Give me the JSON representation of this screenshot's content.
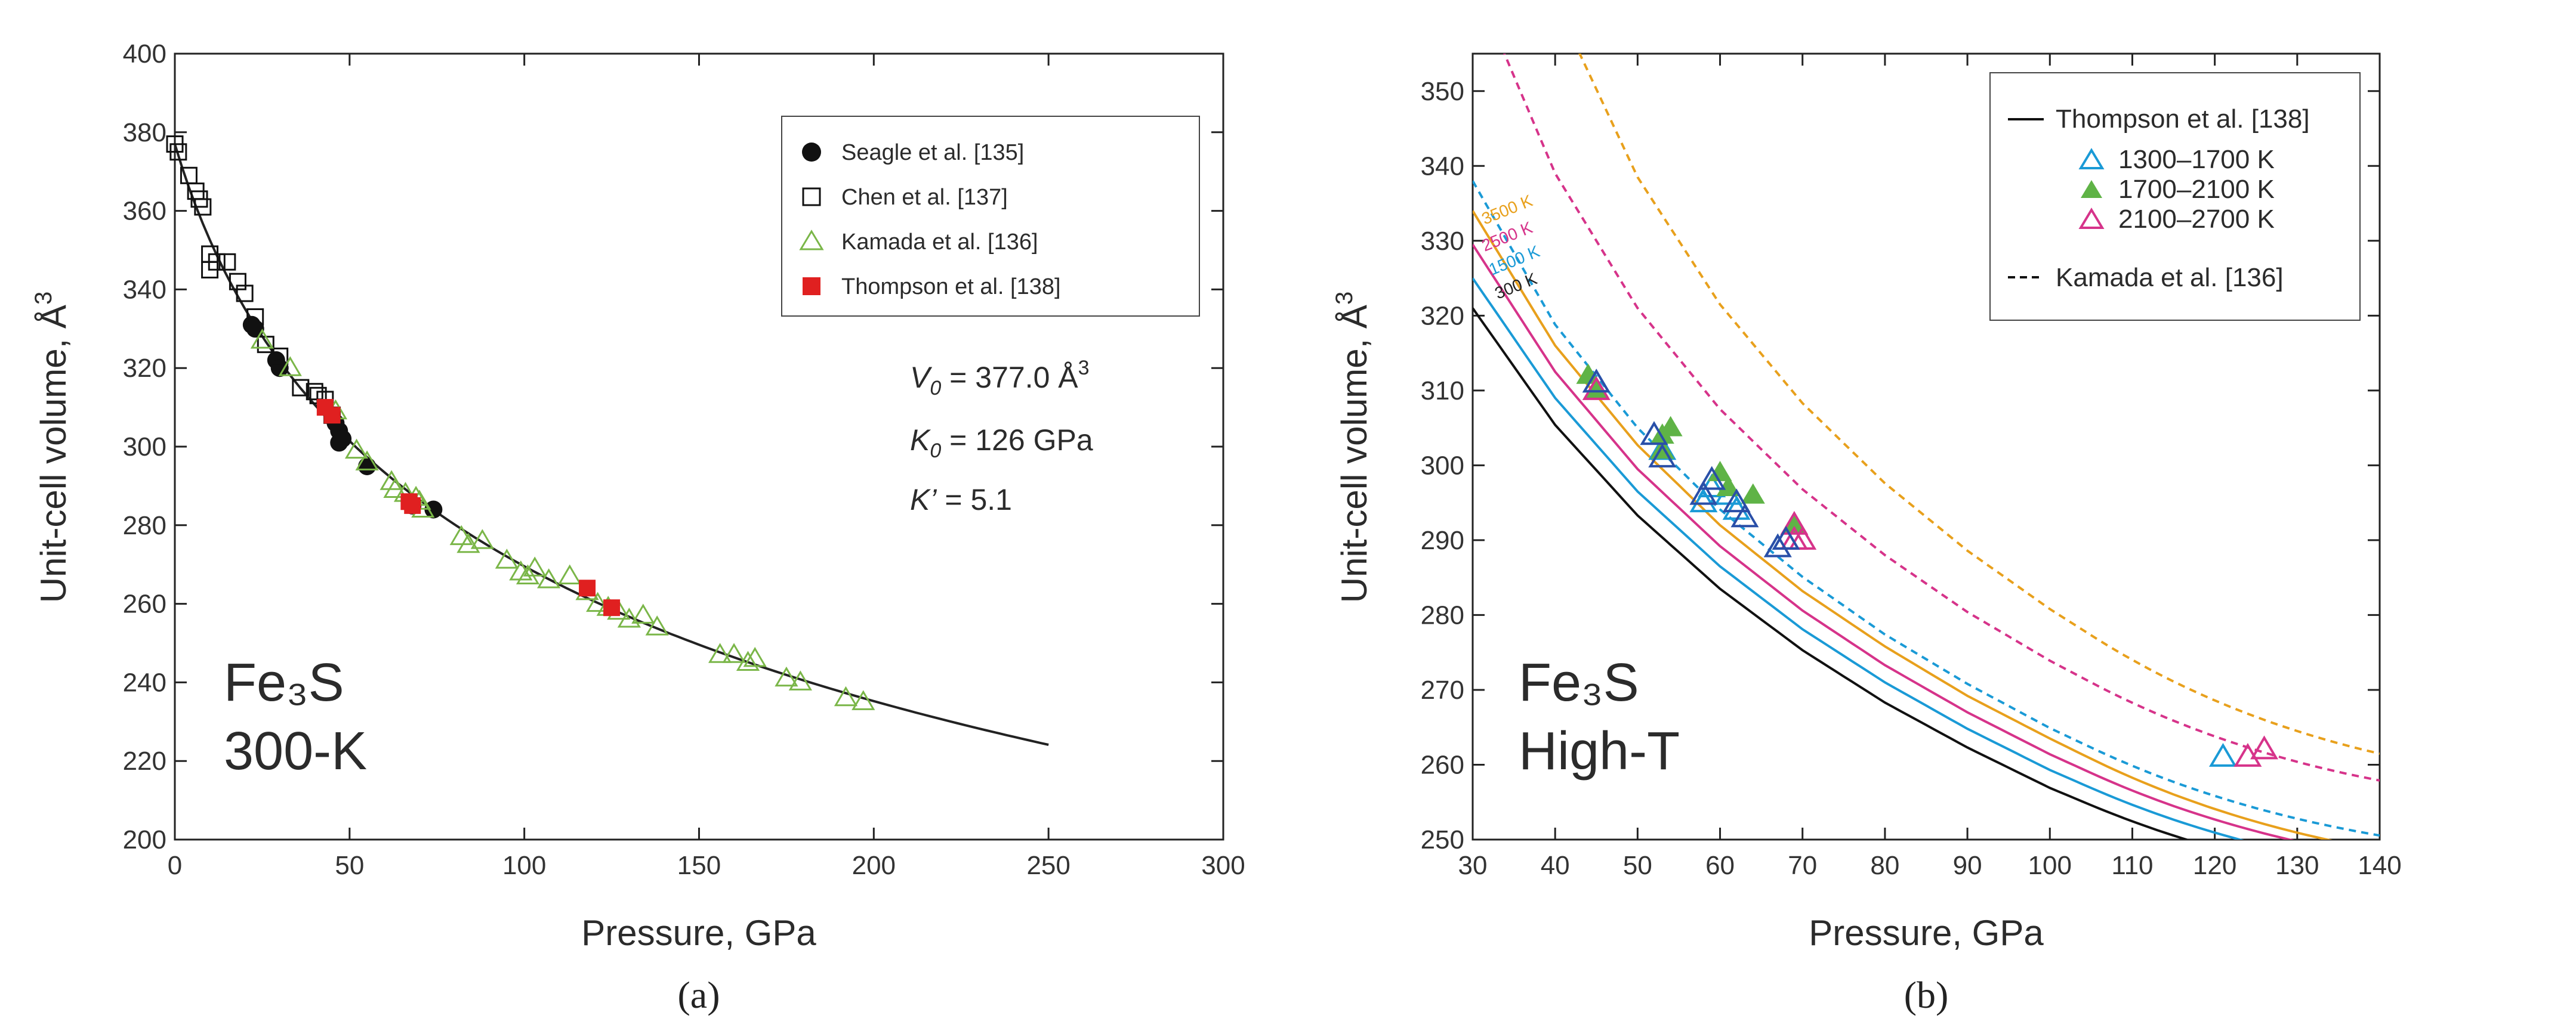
{
  "chart_data": [
    {
      "type": "scatter",
      "panel": "a",
      "caption": "(a)",
      "xlabel": "Pressure, GPa",
      "ylabel_text": "Unit-cell volume, Å",
      "ylabel_sup": "3",
      "xlim": [
        0,
        300
      ],
      "ylim": [
        200,
        400
      ],
      "xticks": [
        0,
        50,
        100,
        150,
        200,
        250,
        300
      ],
      "yticks": [
        200,
        220,
        240,
        260,
        280,
        300,
        320,
        340,
        360,
        380,
        400
      ],
      "grid": false,
      "legend_position": "top-right",
      "sample_label": "Fe₃S",
      "condition_label": "300-K",
      "params": {
        "V0_name": "V",
        "V0_sub": "0",
        "V0_value": " = 377.0 Å",
        "V0_sup": "3",
        "K0_name": "K",
        "K0_sub": "0",
        "K0_value": " = 126 GPa",
        "Kp_name": "K’",
        "Kp_value": " = 5.1"
      },
      "fit_curve": {
        "type": "birch-murnaghan",
        "V0": 377.0,
        "K0": 126,
        "Kp": 5.1,
        "pressure_range": [
          0,
          250
        ],
        "color": "#222222"
      },
      "series": [
        {
          "name": "Seagle et al. [135]",
          "marker": "circle-filled",
          "color": "#111111",
          "points": [
            [
              22,
              331
            ],
            [
              23,
              330
            ],
            [
              29,
              322
            ],
            [
              30,
              320
            ],
            [
              46,
              306
            ],
            [
              47,
              304
            ],
            [
              47,
              301
            ],
            [
              48,
              302
            ],
            [
              55,
              295
            ],
            [
              68,
              285
            ],
            [
              74,
              284
            ]
          ]
        },
        {
          "name": "Chen et al. [137]",
          "marker": "square-open",
          "color": "#111111",
          "points": [
            [
              0,
              377
            ],
            [
              1,
              375
            ],
            [
              4,
              369
            ],
            [
              6,
              365
            ],
            [
              7,
              363
            ],
            [
              8,
              361
            ],
            [
              10,
              349
            ],
            [
              10,
              345
            ],
            [
              12,
              347
            ],
            [
              15,
              347
            ],
            [
              18,
              342
            ],
            [
              20,
              339
            ],
            [
              23,
              333
            ],
            [
              26,
              326
            ],
            [
              30,
              323
            ],
            [
              36,
              315
            ],
            [
              40,
              314
            ],
            [
              41,
              313
            ],
            [
              43,
              312
            ],
            [
              45,
              308
            ]
          ]
        },
        {
          "name": "Kamada et al. [136]",
          "marker": "triangle-open",
          "color": "#7ab648",
          "points": [
            [
              25,
              327
            ],
            [
              33,
              320
            ],
            [
              46,
              309
            ],
            [
              52,
              299
            ],
            [
              55,
              296
            ],
            [
              62,
              291
            ],
            [
              63,
              289
            ],
            [
              66,
              288
            ],
            [
              69,
              287
            ],
            [
              70,
              286
            ],
            [
              71,
              284
            ],
            [
              82,
              277
            ],
            [
              84,
              275
            ],
            [
              88,
              276
            ],
            [
              95,
              271
            ],
            [
              99,
              268
            ],
            [
              101,
              267
            ],
            [
              103,
              269
            ],
            [
              107,
              266
            ],
            [
              113,
              267
            ],
            [
              118,
              263
            ],
            [
              121,
              260
            ],
            [
              124,
              259
            ],
            [
              127,
              258
            ],
            [
              130,
              256
            ],
            [
              134,
              257
            ],
            [
              138,
              254
            ],
            [
              156,
              247
            ],
            [
              160,
              247
            ],
            [
              164,
              245
            ],
            [
              166,
              246
            ],
            [
              175,
              241
            ],
            [
              179,
              240
            ],
            [
              192,
              236
            ],
            [
              197,
              235
            ]
          ]
        },
        {
          "name": "Thompson et al. [138]",
          "marker": "square-filled",
          "color": "#e02020",
          "points": [
            [
              43,
              310
            ],
            [
              45,
              308
            ],
            [
              67,
              286
            ],
            [
              68,
              285
            ],
            [
              118,
              264
            ],
            [
              125,
              259
            ]
          ]
        }
      ]
    },
    {
      "type": "line",
      "panel": "b",
      "caption": "(b)",
      "xlabel": "Pressure, GPa",
      "ylabel_text": "Unit-cell volume, Å",
      "ylabel_sup": "3",
      "xlim": [
        30,
        140
      ],
      "ylim": [
        250,
        355
      ],
      "xticks": [
        30,
        40,
        50,
        60,
        70,
        80,
        90,
        100,
        110,
        120,
        130,
        140
      ],
      "yticks": [
        250,
        260,
        270,
        280,
        290,
        300,
        310,
        320,
        330,
        340,
        350
      ],
      "grid": false,
      "legend_position": "top-right",
      "sample_label": "Fe₃S",
      "condition_label": "High-T",
      "legend": {
        "solid_label": "Thompson et al. [138]",
        "dashed_label": "Kamada et al. [136]",
        "marker_labels": [
          "1300–1700 K",
          "1700–2100 K",
          "2100–2700 K"
        ]
      },
      "series": [
        {
          "name": "300 K",
          "style": "solid",
          "color": "#111111",
          "V": [
            321.0,
            305.4,
            293.3,
            283.5,
            275.3,
            268.3,
            262.3,
            256.9,
            254.6
          ]
        },
        {
          "name": "1500 K",
          "style": "solid",
          "color": "#1a9ad6",
          "V": [
            325.0,
            309.0,
            296.5,
            286.5,
            278.1,
            271.0,
            264.8,
            259.3,
            256.9
          ]
        },
        {
          "name": "2500 K",
          "style": "solid",
          "color": "#d6338a",
          "V": [
            329.5,
            312.5,
            299.5,
            289.2,
            280.6,
            273.3,
            267.0,
            261.4,
            258.9
          ]
        },
        {
          "name": "3500 K",
          "style": "solid",
          "color": "#e8a01c",
          "V": [
            334.0,
            316.0,
            302.7,
            292.0,
            283.2,
            275.8,
            269.2,
            263.5,
            260.8
          ]
        },
        {
          "name": "Kamada 1",
          "style": "dashed",
          "color": "#1a9ad6",
          "V": [
            338.0,
            318.8,
            305.0,
            294.1,
            285.1,
            277.4,
            270.8,
            264.9,
            262.3
          ]
        },
        {
          "name": "Kamada 2",
          "style": "dashed",
          "color": "#d6338a",
          "V": [
            365.0,
            339.0,
            321.0,
            307.5,
            296.8,
            288.0,
            280.4,
            273.9,
            271.0
          ]
        },
        {
          "name": "Kamada 3",
          "style": "dashed",
          "color": "#e8a01c",
          "V": [
            398.0,
            362.0,
            338.5,
            321.5,
            308.3,
            297.6,
            288.6,
            280.8,
            277.3
          ]
        }
      ],
      "pressures": [
        30,
        40,
        50,
        60,
        70,
        80,
        90,
        100,
        105
      ],
      "markers": [
        {
          "name": "1300–1700 K",
          "marker": "triangle-open",
          "color": "#1a9ad6",
          "points": [
            [
              45,
              311
            ],
            [
              52,
              304
            ],
            [
              53,
              302
            ],
            [
              58,
              295
            ],
            [
              59,
              297
            ],
            [
              61,
              296
            ],
            [
              62,
              294
            ],
            [
              67,
              289
            ],
            [
              68,
              290
            ],
            [
              121,
              261
            ]
          ]
        },
        {
          "name": "1700–2100 K",
          "marker": "triangle-filled",
          "color": "#5fb346",
          "points": [
            [
              44,
              312
            ],
            [
              45,
              310
            ],
            [
              53,
              304
            ],
            [
              53,
              302
            ],
            [
              54,
              305
            ],
            [
              60,
              299
            ],
            [
              61,
              297
            ],
            [
              64,
              296
            ],
            [
              69,
              292
            ]
          ]
        },
        {
          "name": "2100–2700 K",
          "marker": "triangle-open",
          "color": "#d6338a",
          "points": [
            [
              45,
              310
            ],
            [
              69,
              292
            ],
            [
              69,
              290
            ],
            [
              70,
              290
            ],
            [
              124,
              261
            ],
            [
              126,
              262
            ]
          ]
        },
        {
          "name": "dark-blue",
          "marker": "triangle-open",
          "color": "#2a4fa8",
          "points": [
            [
              45,
              311
            ],
            [
              52,
              304
            ],
            [
              53,
              301
            ],
            [
              58,
              296
            ],
            [
              59,
              298
            ],
            [
              62,
              295
            ],
            [
              63,
              293
            ],
            [
              67,
              289
            ],
            [
              68,
              290
            ]
          ]
        }
      ]
    }
  ]
}
